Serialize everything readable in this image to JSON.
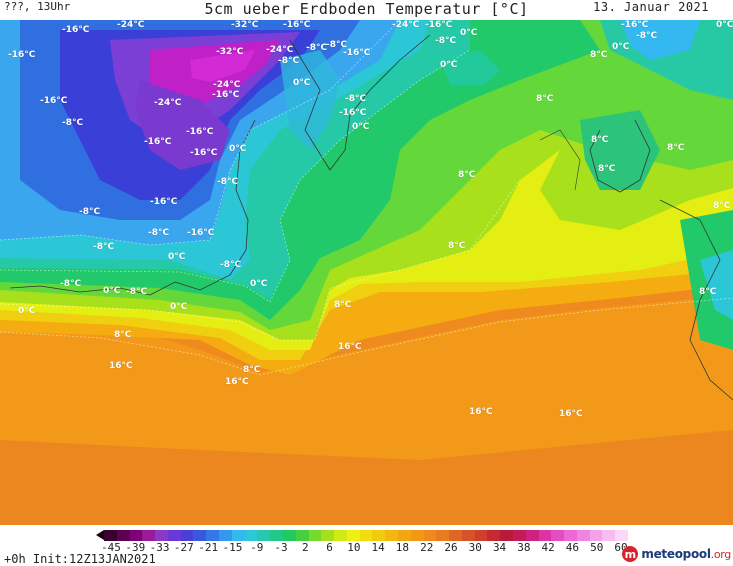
{
  "header": {
    "model_label": "???, 13Uhr",
    "title": "5cm ueber Erdboden Temperatur [°C]",
    "date": "13. Januar 2021"
  },
  "colors": {
    "deep_violet": "#8a2be2",
    "violet": "#7b3fd6",
    "magenta": "#c020c8",
    "royal_blue": "#3a3fd8",
    "blue": "#2f6fe0",
    "sky_blue": "#39a6ee",
    "cyan": "#2cc7d6",
    "teal": "#25c9a8",
    "green": "#22c96a",
    "light_green": "#64d83a",
    "yellow_green": "#a8e01c",
    "yellow": "#e4ee12",
    "gold": "#f0cf10",
    "amber": "#f4ac10",
    "orange": "#f3991a",
    "deep_orange": "#ef8a1f"
  },
  "labels": [
    {
      "text": "-24°C"
    },
    {
      "text": "-32°C"
    },
    {
      "text": "-16°C"
    },
    {
      "text": "-24°C"
    },
    {
      "text": "-16°C"
    },
    {
      "text": "-16°C"
    },
    {
      "text": "0°C"
    },
    {
      "text": "-16°C"
    },
    {
      "text": "-8°C"
    },
    {
      "text": "-32°C"
    },
    {
      "text": "-24°C"
    },
    {
      "text": "-8°C"
    },
    {
      "text": "-8°C"
    },
    {
      "text": "-16°C"
    },
    {
      "text": "-8°C"
    },
    {
      "text": "0°C"
    },
    {
      "text": "-24°C"
    },
    {
      "text": "-16°C"
    },
    {
      "text": "0°C"
    },
    {
      "text": "-16°C"
    },
    {
      "text": "-24°C"
    },
    {
      "text": "-8°C"
    },
    {
      "text": "-16°C"
    },
    {
      "text": "-8°C"
    },
    {
      "text": "0°C"
    },
    {
      "text": "-16°C"
    },
    {
      "text": "-16°C"
    },
    {
      "text": "0°C"
    },
    {
      "text": "-16°C"
    },
    {
      "text": "-8°C"
    },
    {
      "text": "-8°C"
    },
    {
      "text": "-16°C"
    },
    {
      "text": "-8°C"
    },
    {
      "text": "-8°C"
    },
    {
      "text": "-16°C"
    },
    {
      "text": "0°C"
    },
    {
      "text": "-8°C"
    },
    {
      "text": "-8°C"
    },
    {
      "text": "0°C"
    },
    {
      "text": "-8°C"
    },
    {
      "text": "0°C"
    },
    {
      "text": "0°C"
    },
    {
      "text": "0°C"
    },
    {
      "text": "8°C"
    },
    {
      "text": "8°C"
    },
    {
      "text": "16°C"
    },
    {
      "text": "8°C"
    },
    {
      "text": "16°C"
    },
    {
      "text": "16°C"
    },
    {
      "text": "16°C"
    },
    {
      "text": "8°C"
    },
    {
      "text": "8°C"
    },
    {
      "text": "8°C"
    },
    {
      "text": "8°C"
    },
    {
      "text": "8°C"
    },
    {
      "text": "8°C"
    },
    {
      "text": "8°C"
    },
    {
      "text": "8°C"
    },
    {
      "text": "8°C"
    },
    {
      "text": "16°C"
    },
    {
      "text": "-16°C"
    },
    {
      "text": "-8°C"
    },
    {
      "text": "0°C"
    },
    {
      "text": "0°C"
    }
  ],
  "colorbar": {
    "ticks": [
      "-45",
      "-39",
      "-33",
      "-27",
      "-21",
      "-15",
      "-9",
      "-3",
      "2",
      "6",
      "10",
      "14",
      "18",
      "22",
      "26",
      "30",
      "34",
      "38",
      "42",
      "46",
      "50",
      "60"
    ],
    "swatches": [
      "#3a0030",
      "#600050",
      "#800078",
      "#9a1a9a",
      "#8a38c8",
      "#6a38d8",
      "#4a40d8",
      "#3858e0",
      "#3478e8",
      "#3598ee",
      "#33b8f0",
      "#2cc8d8",
      "#26c8b0",
      "#22c888",
      "#22c860",
      "#44d040",
      "#76da2a",
      "#a6e01c",
      "#d2ea14",
      "#eef012",
      "#f2de10",
      "#f2ca10",
      "#f4b610",
      "#f4a612",
      "#f29816",
      "#ee8a1c",
      "#e87a20",
      "#e06624",
      "#d85228",
      "#d03e2c",
      "#c42a30",
      "#b81a38",
      "#c41a58",
      "#d02080",
      "#dc34a4",
      "#e44cc0",
      "#ec68d4",
      "#f084e0",
      "#f4a0ea",
      "#f8bcf2",
      "#fcd8f8"
    ]
  },
  "footer": {
    "init": "+0h  Init:12Z13JAN2021",
    "logo_brand": "meteopool",
    "logo_tld": ".org"
  }
}
